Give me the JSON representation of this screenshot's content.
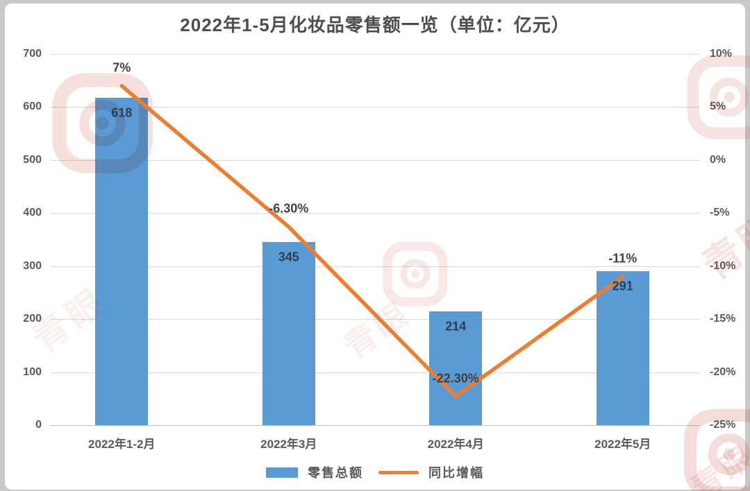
{
  "title": "2022年1-5月化妆品零售额一览（单位：亿元）",
  "chart_data": {
    "type": "bar+line",
    "title": "2022年1-5月化妆品零售额一览（单位：亿元）",
    "categories": [
      "2022年1-2月",
      "2022年3月",
      "2022年4月",
      "2022年5月"
    ],
    "series": [
      {
        "name": "零售总额",
        "type": "bar",
        "axis": "left",
        "values": [
          618,
          345,
          214,
          291
        ],
        "labels": [
          "618",
          "345",
          "214",
          "291"
        ],
        "color": "#5B9BD5"
      },
      {
        "name": "同比增幅",
        "type": "line",
        "axis": "right",
        "values": [
          7,
          -6.3,
          -22.3,
          -11
        ],
        "labels": [
          "7%",
          "-6.30%",
          "-22.30%",
          "-11%"
        ],
        "color": "#ED7D31"
      }
    ],
    "left_axis": {
      "min": 0,
      "max": 700,
      "ticks": [
        "700",
        "600",
        "500",
        "400",
        "300",
        "200",
        "100",
        "0"
      ]
    },
    "right_axis": {
      "min": -25,
      "max": 10,
      "ticks": [
        "10%",
        "5%",
        "0%",
        "-5%",
        "-10%",
        "-15%",
        "-20%",
        "-25%"
      ]
    },
    "grid": true,
    "legend_position": "bottom"
  },
  "legend": {
    "bar_label": "零售总额",
    "line_label": "同比增幅"
  },
  "watermark": {
    "text": "青眼"
  },
  "colors": {
    "bar": "#5B9BD5",
    "line": "#ED7D31",
    "title_text": "#4d4d4d",
    "axis_text": "#595959",
    "bar_value_text": "#2f3d55",
    "gridline": "#d9d9d9",
    "watermark": "#c0392b",
    "frame": "#c9c9c9"
  }
}
